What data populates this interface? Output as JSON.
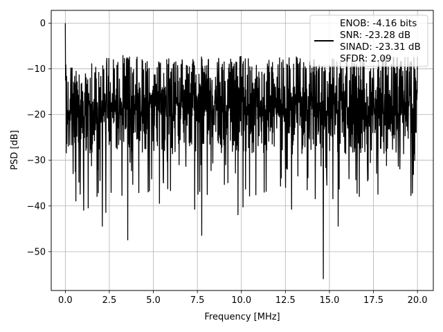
{
  "chart_data": {
    "type": "line",
    "xlabel": "Frequency [MHz]",
    "ylabel": "PSD [dB]",
    "xlim": [
      -0.8,
      20.9
    ],
    "ylim": [
      -58.5,
      2.8
    ],
    "xticks": [
      0.0,
      2.5,
      5.0,
      7.5,
      10.0,
      12.5,
      15.0,
      17.5,
      20.0
    ],
    "xtick_labels": [
      "0.0",
      "2.5",
      "5.0",
      "7.5",
      "10.0",
      "12.5",
      "15.0",
      "17.5",
      "20.0"
    ],
    "yticks": [
      0,
      -10,
      -20,
      -30,
      -40,
      -50
    ],
    "ytick_labels": [
      "0",
      "−10",
      "−20",
      "−30",
      "−40",
      "−50"
    ],
    "grid": true,
    "legend_position": "upper-right",
    "legend_lines": [
      "ENOB: -4.16 bits",
      "SNR: -23.28 dB",
      "SINAD: -23.31 dB",
      "SFDR: 2.09"
    ],
    "series": [
      {
        "color": "#000000",
        "description": "noisy power spectral density from 0 to 20 MHz",
        "x_range": [
          0.0,
          20.0
        ],
        "peak": {
          "x": 0.0,
          "y": 0.0
        },
        "band_top_approx": -9,
        "band_bottom_approx": -27,
        "deep_dips": [
          {
            "x": 0.45,
            "y": -33
          },
          {
            "x": 0.6,
            "y": -39
          },
          {
            "x": 0.85,
            "y": -37.5
          },
          {
            "x": 1.05,
            "y": -41
          },
          {
            "x": 1.3,
            "y": -40.5
          },
          {
            "x": 1.8,
            "y": -38
          },
          {
            "x": 2.1,
            "y": -44.5
          },
          {
            "x": 2.3,
            "y": -41.5
          },
          {
            "x": 3.55,
            "y": -47.5
          },
          {
            "x": 4.7,
            "y": -37
          },
          {
            "x": 5.35,
            "y": -39.5
          },
          {
            "x": 7.35,
            "y": -40.8
          },
          {
            "x": 7.75,
            "y": -46.5
          },
          {
            "x": 9.8,
            "y": -42
          },
          {
            "x": 10.1,
            "y": -40.3
          },
          {
            "x": 12.85,
            "y": -40.8
          },
          {
            "x": 14.2,
            "y": -38.5
          },
          {
            "x": 14.65,
            "y": -56
          },
          {
            "x": 15.2,
            "y": -38.5
          },
          {
            "x": 15.5,
            "y": -44.5
          },
          {
            "x": 16.7,
            "y": -38
          },
          {
            "x": 17.75,
            "y": -37.5
          }
        ]
      }
    ]
  }
}
